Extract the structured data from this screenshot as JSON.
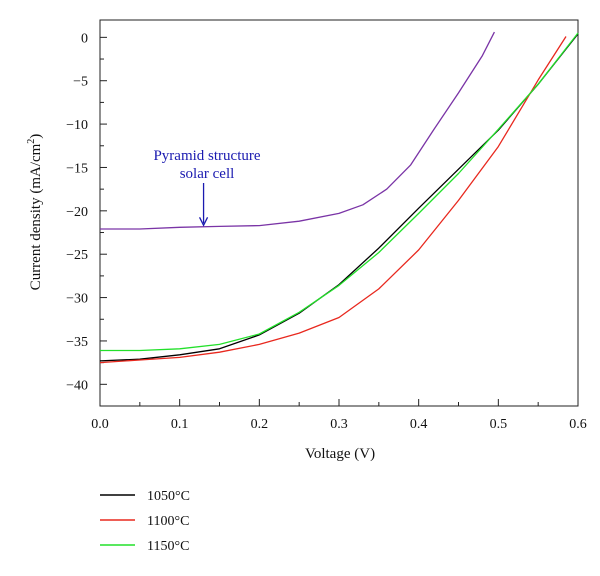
{
  "chart_data": {
    "type": "line",
    "xlabel": "Voltage (V)",
    "ylabel_main": "Current density (mA/cm",
    "ylabel_sup": "2",
    "ylabel_close": ")",
    "xlim": [
      0.0,
      0.6
    ],
    "ylim": [
      -42.5,
      2.0
    ],
    "xticks": [
      0.0,
      0.1,
      0.2,
      0.3,
      0.4,
      0.5,
      0.6
    ],
    "xtick_labels": [
      "0.0",
      "0.1",
      "0.2",
      "0.3",
      "0.4",
      "0.5",
      "0.6"
    ],
    "yticks": [
      0,
      -5,
      -10,
      -15,
      -20,
      -25,
      -30,
      -35,
      -40
    ],
    "ytick_labels": [
      "0",
      "−5",
      "−10",
      "−15",
      "−20",
      "−25",
      "−30",
      "−35",
      "−40"
    ],
    "grid": false,
    "legend_position": "bottom-left-outside",
    "annotation": {
      "lines": [
        "Pyramid structure",
        "solar cell"
      ],
      "color": "#1a1ab0",
      "arrow_target": [
        0.13,
        -21.9
      ]
    },
    "series": [
      {
        "name": "1050°C",
        "color": "#000000",
        "x": [
          0.0,
          0.05,
          0.1,
          0.15,
          0.2,
          0.25,
          0.3,
          0.35,
          0.4,
          0.45,
          0.5,
          0.55,
          0.6
        ],
        "y": [
          -37.3,
          -37.1,
          -36.6,
          -35.9,
          -34.3,
          -31.8,
          -28.5,
          -24.3,
          -19.7,
          -15.2,
          -10.7,
          -5.4,
          0.4
        ]
      },
      {
        "name": "1100°C",
        "color": "#e8281e",
        "x": [
          0.0,
          0.05,
          0.1,
          0.15,
          0.2,
          0.25,
          0.3,
          0.35,
          0.4,
          0.45,
          0.5,
          0.55,
          0.585
        ],
        "y": [
          -37.5,
          -37.2,
          -36.9,
          -36.3,
          -35.4,
          -34.1,
          -32.3,
          -29.0,
          -24.5,
          -18.8,
          -12.6,
          -4.9,
          0.1
        ]
      },
      {
        "name": "1150°C",
        "color": "#22e02a",
        "x": [
          0.0,
          0.05,
          0.1,
          0.15,
          0.2,
          0.25,
          0.3,
          0.35,
          0.4,
          0.45,
          0.5,
          0.55,
          0.6
        ],
        "y": [
          -36.1,
          -36.1,
          -35.9,
          -35.4,
          -34.2,
          -31.7,
          -28.6,
          -24.8,
          -20.3,
          -15.7,
          -10.6,
          -5.4,
          0.5
        ]
      },
      {
        "name": "",
        "color": "#7a34a6",
        "x": [
          0.0,
          0.05,
          0.1,
          0.15,
          0.2,
          0.25,
          0.3,
          0.33,
          0.36,
          0.39,
          0.42,
          0.45,
          0.48,
          0.495
        ],
        "y": [
          -22.1,
          -22.1,
          -21.9,
          -21.8,
          -21.7,
          -21.2,
          -20.3,
          -19.3,
          -17.5,
          -14.7,
          -10.5,
          -6.4,
          -2.1,
          0.6
        ]
      }
    ]
  }
}
